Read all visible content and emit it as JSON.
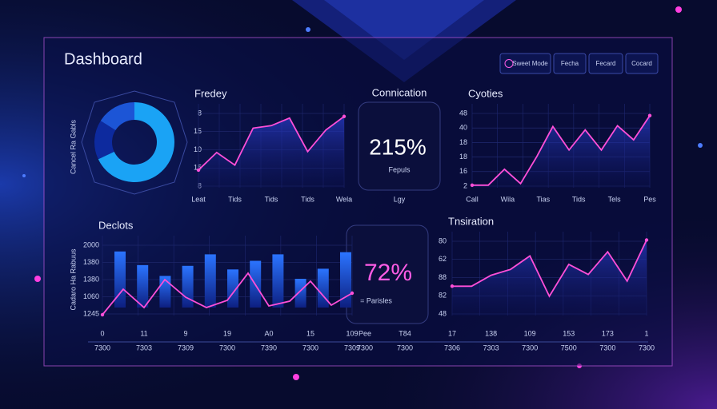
{
  "header": {
    "title": "Dashboard",
    "buttons": [
      "Sweet Mode",
      "Fecha",
      "Fecard",
      "Cocard"
    ]
  },
  "donut": {
    "label": "Cancel Ra Gabls",
    "values": [
      68,
      16,
      16
    ],
    "colors": [
      "#1aa3f5",
      "#0d2a9e",
      "#1c55d6"
    ]
  },
  "line_a": {
    "title": "Fredey",
    "y_labels": [
      "8",
      "15",
      "10",
      "15",
      "8"
    ],
    "x_labels": [
      "Leat",
      "Tids",
      "Tids",
      "Tids",
      "Wela"
    ],
    "ylim": [
      0,
      10
    ],
    "values": [
      2.1,
      4.2,
      2.7,
      7.1,
      7.4,
      8.3,
      4.3,
      6.9,
      8.5
    ],
    "color": "#ff4fd8"
  },
  "stat_a": {
    "title": "Connication",
    "value": "215%",
    "caption": "Fepuls",
    "footer": "Lgy"
  },
  "line_b": {
    "title": "Cyoties",
    "y_labels": [
      "48",
      "40",
      "18",
      "18",
      "16",
      "2"
    ],
    "x_labels": [
      "Call",
      "Wila",
      "Tias",
      "Tids",
      "Tels",
      "Pes"
    ],
    "ylim": [
      0,
      10
    ],
    "values": [
      0.3,
      0.3,
      2.2,
      0.5,
      3.7,
      7.3,
      4.5,
      6.9,
      4.5,
      7.4,
      5.7,
      8.6
    ],
    "color": "#ff4fd8"
  },
  "combo": {
    "title": "Declots",
    "axis_label": "Cadaro Ha Rabuus",
    "y_labels": [
      "2000",
      "1380",
      "1380",
      "1060",
      "1245"
    ],
    "x_labels": [
      "0",
      "11",
      "9",
      "19",
      "A0",
      "15",
      "109"
    ],
    "x_labels_2": [
      "7300",
      "7303",
      "7309",
      "7300",
      "7390",
      "7300",
      "7309"
    ],
    "ylim": [
      0,
      10
    ],
    "bars": [
      7.8,
      5.9,
      4.4,
      5.8,
      7.4,
      5.3,
      6.5,
      7.4,
      4.0,
      5.4,
      7.7
    ],
    "line": [
      0.1,
      3.3,
      1.0,
      4.5,
      2.3,
      1.0,
      1.9,
      5.3,
      1.2,
      1.8,
      4.3,
      1.3,
      2.8
    ],
    "bar_color": "#1f5fe0",
    "line_color": "#ff4fd8"
  },
  "stat_b": {
    "value": "72%",
    "caption": "= Parisles",
    "x_labels": [
      "Pee",
      "T84"
    ],
    "x_labels_2": [
      "7300",
      "7300"
    ]
  },
  "line_c": {
    "title": "Tnsiration",
    "y_labels": [
      "80",
      "62",
      "88",
      "82",
      "48"
    ],
    "x_labels": [
      "17",
      "138",
      "109",
      "153",
      "173",
      "1"
    ],
    "x_labels_2": [
      "7306",
      "7303",
      "7300",
      "7500",
      "7300",
      "7300"
    ],
    "ylim": [
      0,
      10
    ],
    "values": [
      3.5,
      3.5,
      4.8,
      5.5,
      7.1,
      2.3,
      6.1,
      4.9,
      7.6,
      4.1,
      9.0
    ],
    "color": "#ff4fd8"
  }
}
